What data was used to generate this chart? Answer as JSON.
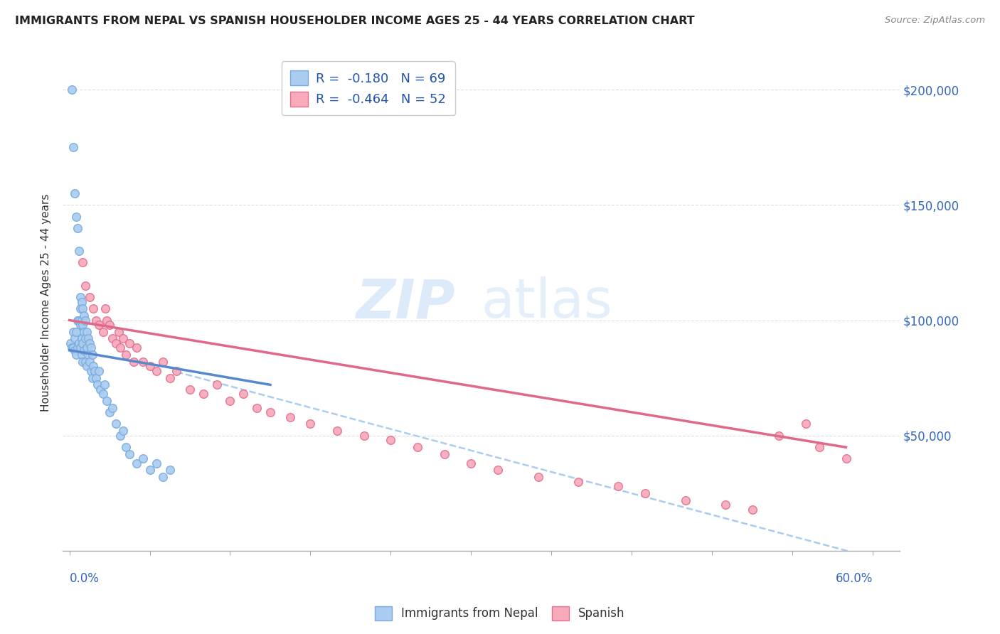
{
  "title": "IMMIGRANTS FROM NEPAL VS SPANISH HOUSEHOLDER INCOME AGES 25 - 44 YEARS CORRELATION CHART",
  "source": "Source: ZipAtlas.com",
  "ylabel": "Householder Income Ages 25 - 44 years",
  "ytick_values": [
    50000,
    100000,
    150000,
    200000
  ],
  "legend_label1": "Immigrants from Nepal",
  "legend_label2": "Spanish",
  "R1": "-0.180",
  "N1": "69",
  "R2": "-0.464",
  "N2": "52",
  "color_nepal": "#aaccf0",
  "color_nepal_edge": "#7aaadd",
  "color_nepal_line": "#5588cc",
  "color_spanish": "#f8aabb",
  "color_spanish_edge": "#e07090",
  "color_spanish_line": "#e06888",
  "color_dashed": "#aaccee",
  "watermark_zip": "ZIP",
  "watermark_atlas": "atlas",
  "nepal_x": [
    0.001,
    0.002,
    0.002,
    0.003,
    0.003,
    0.003,
    0.004,
    0.004,
    0.004,
    0.005,
    0.005,
    0.005,
    0.006,
    0.006,
    0.006,
    0.007,
    0.007,
    0.007,
    0.008,
    0.008,
    0.008,
    0.008,
    0.009,
    0.009,
    0.009,
    0.009,
    0.01,
    0.01,
    0.01,
    0.01,
    0.011,
    0.011,
    0.011,
    0.012,
    0.012,
    0.012,
    0.013,
    0.013,
    0.013,
    0.014,
    0.014,
    0.015,
    0.015,
    0.016,
    0.016,
    0.017,
    0.017,
    0.018,
    0.019,
    0.02,
    0.021,
    0.022,
    0.023,
    0.025,
    0.026,
    0.028,
    0.03,
    0.032,
    0.035,
    0.038,
    0.04,
    0.042,
    0.045,
    0.05,
    0.055,
    0.06,
    0.065,
    0.07,
    0.075
  ],
  "nepal_y": [
    90000,
    200000,
    88000,
    175000,
    95000,
    88000,
    155000,
    92000,
    87000,
    145000,
    95000,
    85000,
    140000,
    100000,
    88000,
    130000,
    100000,
    90000,
    110000,
    105000,
    98000,
    88000,
    108000,
    100000,
    92000,
    85000,
    105000,
    98000,
    90000,
    82000,
    102000,
    95000,
    87000,
    100000,
    92000,
    82000,
    95000,
    88000,
    80000,
    92000,
    85000,
    90000,
    82000,
    88000,
    78000,
    85000,
    75000,
    80000,
    78000,
    75000,
    72000,
    78000,
    70000,
    68000,
    72000,
    65000,
    60000,
    62000,
    55000,
    50000,
    52000,
    45000,
    42000,
    38000,
    40000,
    35000,
    38000,
    32000,
    35000
  ],
  "spanish_x": [
    0.01,
    0.012,
    0.015,
    0.018,
    0.02,
    0.022,
    0.025,
    0.027,
    0.028,
    0.03,
    0.032,
    0.035,
    0.037,
    0.038,
    0.04,
    0.042,
    0.045,
    0.048,
    0.05,
    0.055,
    0.06,
    0.065,
    0.07,
    0.075,
    0.08,
    0.09,
    0.1,
    0.11,
    0.12,
    0.13,
    0.14,
    0.15,
    0.165,
    0.18,
    0.2,
    0.22,
    0.24,
    0.26,
    0.28,
    0.3,
    0.32,
    0.35,
    0.38,
    0.41,
    0.43,
    0.46,
    0.49,
    0.51,
    0.53,
    0.55,
    0.56,
    0.58
  ],
  "spanish_y": [
    125000,
    115000,
    110000,
    105000,
    100000,
    98000,
    95000,
    105000,
    100000,
    98000,
    92000,
    90000,
    95000,
    88000,
    92000,
    85000,
    90000,
    82000,
    88000,
    82000,
    80000,
    78000,
    82000,
    75000,
    78000,
    70000,
    68000,
    72000,
    65000,
    68000,
    62000,
    60000,
    58000,
    55000,
    52000,
    50000,
    48000,
    45000,
    42000,
    38000,
    35000,
    32000,
    30000,
    28000,
    25000,
    22000,
    20000,
    18000,
    50000,
    55000,
    45000,
    40000
  ],
  "xlim": [
    -0.005,
    0.62
  ],
  "ylim": [
    0,
    215000
  ],
  "xline_start": 0.0,
  "xline_end": 0.6
}
